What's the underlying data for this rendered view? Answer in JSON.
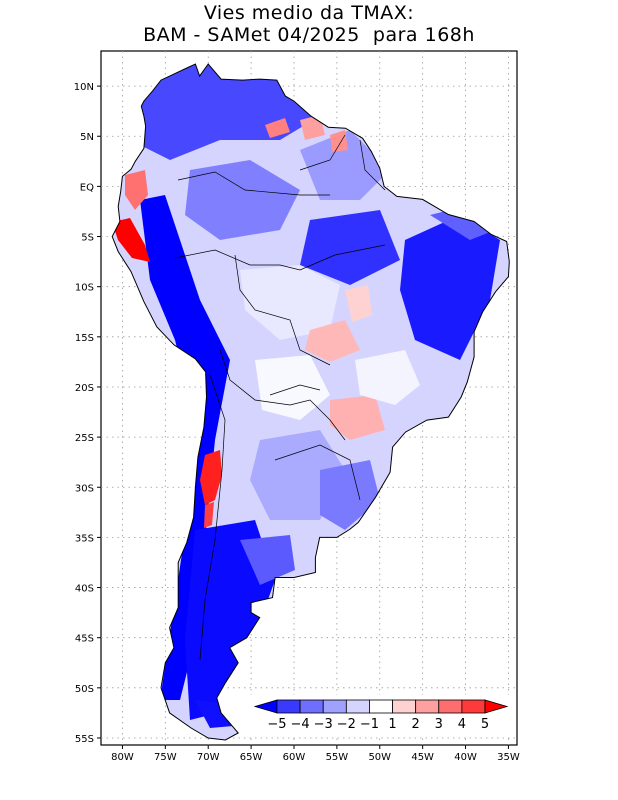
{
  "title": {
    "line1": "Vies medio da TMAX:",
    "line2": "BAM - SAMet 04/2025  para 168h"
  },
  "axes": {
    "lat_labels": [
      "10N",
      "5N",
      "EQ",
      "5S",
      "10S",
      "15S",
      "20S",
      "25S",
      "30S",
      "35S",
      "40S",
      "45S",
      "50S",
      "55S"
    ],
    "lat_values": [
      10,
      5,
      0,
      -5,
      -10,
      -15,
      -20,
      -25,
      -30,
      -35,
      -40,
      -45,
      -50,
      -55
    ],
    "lon_labels": [
      "80W",
      "75W",
      "70W",
      "65W",
      "60W",
      "55W",
      "50W",
      "45W",
      "40W",
      "35W"
    ],
    "lon_values": [
      -80,
      -75,
      -70,
      -65,
      -60,
      -55,
      -50,
      -45,
      -40,
      -35
    ],
    "lon_range": [
      -82.5,
      -34
    ],
    "lat_range": [
      -55.7,
      13.5
    ]
  },
  "colorbar": {
    "labels": [
      "-5",
      "-4",
      "-3",
      "-2",
      "-1",
      "1",
      "2",
      "3",
      "4",
      "5"
    ],
    "colors": [
      "#0000ff",
      "#3a3aff",
      "#6e6eff",
      "#a0a0ff",
      "#d4d4ff",
      "#ffffff",
      "#ffd2d2",
      "#ffa0a0",
      "#ff6e6e",
      "#ff3a3a",
      "#ff0000"
    ]
  },
  "colors": {
    "land_outline": "#000000",
    "grid": "#9a9a9a",
    "frame": "#000000"
  }
}
